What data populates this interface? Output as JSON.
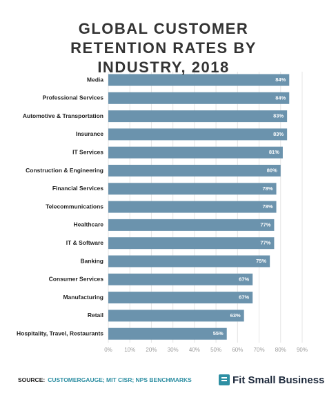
{
  "chart_data": {
    "type": "hbar",
    "title": "GLOBAL CUSTOMER RETENTION RATES BY INDUSTRY, 2018",
    "categories": [
      "Media",
      "Professional Services",
      "Automotive & Transportation",
      "Insurance",
      "IT Services",
      "Construction & Engineering",
      "Financial Services",
      "Telecommunications",
      "Healthcare",
      "IT & Software",
      "Banking",
      "Consumer Services",
      "Manufacturing",
      "Retail",
      "Hospitality, Travel, Restaurants"
    ],
    "values": [
      84,
      84,
      83,
      83,
      81,
      80,
      78,
      78,
      77,
      77,
      75,
      67,
      67,
      63,
      55
    ],
    "value_labels": [
      "84%",
      "84%",
      "83%",
      "83%",
      "81%",
      "80%",
      "78%",
      "78%",
      "77%",
      "77%",
      "75%",
      "67%",
      "67%",
      "63%",
      "55%"
    ],
    "color": "#6b93ad",
    "xlim": [
      0,
      90
    ],
    "xticks": [
      {
        "value": 0,
        "label": "0%"
      },
      {
        "value": 10,
        "label": "10%"
      },
      {
        "value": 20,
        "label": "20%"
      },
      {
        "value": 30,
        "label": "30%"
      },
      {
        "value": 40,
        "label": "40%"
      },
      {
        "value": 50,
        "label": "50%"
      },
      {
        "value": 60,
        "label": "60%"
      },
      {
        "value": 70,
        "label": "70%"
      },
      {
        "value": 80,
        "label": "80%"
      },
      {
        "value": 90,
        "label": "90%"
      }
    ],
    "grid": true,
    "source_label": "SOURCE:",
    "source": "CUSTOMERGAUGE; MIT CISR; NPS BENCHMARKS",
    "brand": "Fit Small Business"
  }
}
